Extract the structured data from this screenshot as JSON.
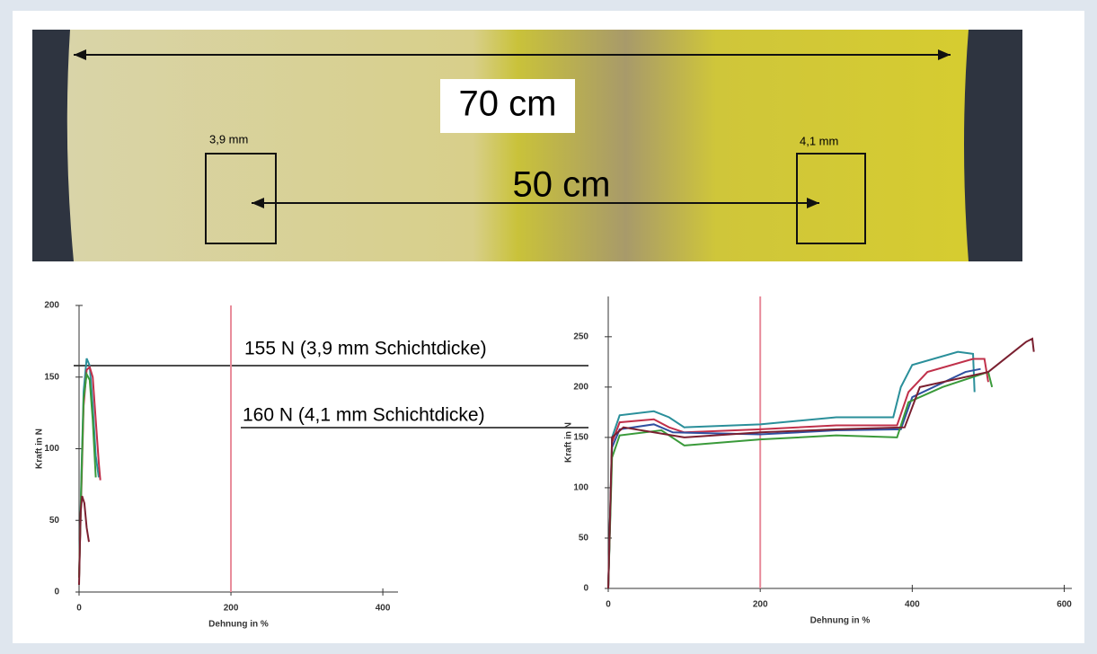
{
  "photo": {
    "width_label": "70 cm",
    "distance_label": "50 cm",
    "left_thickness": "3,9 mm",
    "right_thickness": "4,1 mm"
  },
  "annotations": [
    "155 N (3,9 mm Schichtdicke)",
    "160 N (4,1 mm Schichtdicke)"
  ],
  "chart_data": [
    {
      "type": "line",
      "x_label": "Dehnung in %",
      "y_label": "Kraft in N",
      "xlim": [
        0,
        420
      ],
      "ylim": [
        0,
        200
      ],
      "xticks": [
        0,
        200,
        400
      ],
      "yticks": [
        0,
        50,
        100,
        150,
        200
      ],
      "vline": 200,
      "vline_color": "#e88a9a",
      "series": [
        {
          "color": "#2a8f9a",
          "x": [
            0,
            3,
            6,
            10,
            14,
            18,
            22,
            26
          ],
          "values": [
            10,
            80,
            140,
            163,
            158,
            130,
            95,
            80
          ]
        },
        {
          "color": "#c0304a",
          "x": [
            0,
            3,
            6,
            10,
            14,
            18,
            22,
            26,
            28
          ],
          "values": [
            10,
            70,
            130,
            155,
            157,
            150,
            120,
            90,
            78
          ]
        },
        {
          "color": "#3a9a3a",
          "x": [
            0,
            3,
            6,
            10,
            14,
            18,
            22
          ],
          "values": [
            10,
            75,
            135,
            152,
            148,
            120,
            80
          ]
        },
        {
          "color": "#7a2030",
          "x": [
            0,
            2,
            4,
            7,
            10,
            13
          ],
          "values": [
            5,
            55,
            67,
            62,
            45,
            35
          ]
        }
      ]
    },
    {
      "type": "line",
      "x_label": "Dehnung in %",
      "y_label": "Kraft in N",
      "xlim": [
        0,
        610
      ],
      "ylim": [
        0,
        290
      ],
      "xticks": [
        0,
        200,
        400,
        600
      ],
      "yticks": [
        0,
        50,
        100,
        150,
        200,
        250
      ],
      "vline": 200,
      "vline_color": "#e88a9a",
      "series": [
        {
          "color": "#2a8f9a",
          "x": [
            0,
            5,
            15,
            60,
            80,
            100,
            200,
            300,
            375,
            385,
            400,
            460,
            480,
            482
          ],
          "values": [
            0,
            150,
            172,
            176,
            170,
            160,
            163,
            170,
            170,
            200,
            222,
            235,
            233,
            195
          ]
        },
        {
          "color": "#c0304a",
          "x": [
            0,
            5,
            15,
            60,
            80,
            100,
            200,
            300,
            380,
            395,
            420,
            480,
            495,
            500
          ],
          "values": [
            0,
            145,
            165,
            168,
            160,
            155,
            158,
            162,
            162,
            195,
            215,
            228,
            228,
            205
          ]
        },
        {
          "color": "#3050a0",
          "x": [
            0,
            5,
            15,
            60,
            85,
            200,
            300,
            385,
            400,
            470,
            490
          ],
          "values": [
            0,
            140,
            158,
            163,
            155,
            153,
            157,
            158,
            190,
            215,
            218
          ]
        },
        {
          "color": "#3a9a3a",
          "x": [
            0,
            5,
            15,
            70,
            100,
            200,
            300,
            380,
            395,
            440,
            500,
            505
          ],
          "values": [
            0,
            130,
            152,
            157,
            142,
            148,
            152,
            150,
            185,
            200,
            215,
            200
          ]
        },
        {
          "color": "#7a2030",
          "x": [
            0,
            5,
            20,
            100,
            200,
            300,
            390,
            410,
            500,
            550,
            558,
            560
          ],
          "values": [
            0,
            150,
            160,
            150,
            155,
            158,
            160,
            200,
            215,
            245,
            248,
            235
          ]
        }
      ]
    }
  ]
}
